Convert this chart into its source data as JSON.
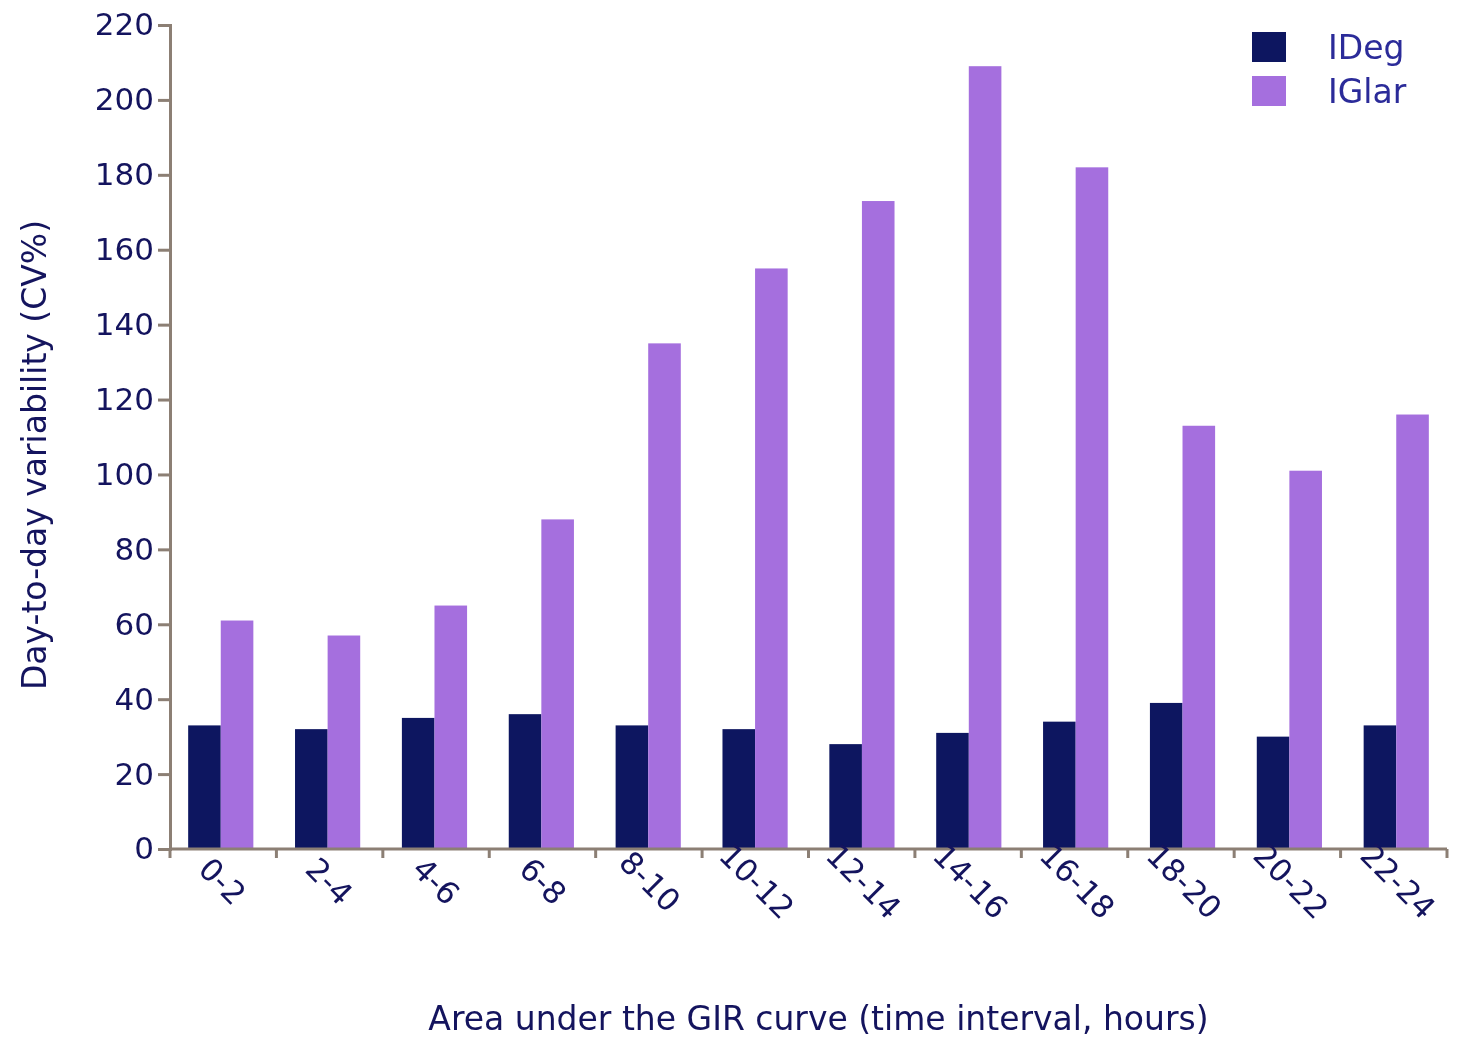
{
  "chart_data": {
    "type": "bar",
    "xlabel": "Area under the GIR curve (time interval, hours)",
    "ylabel": "Day-to-day variability (CV%)",
    "categories": [
      "0-2",
      "2-4",
      "4-6",
      "6-8",
      "8-10",
      "10-12",
      "12-14",
      "14-16",
      "16-18",
      "18-20",
      "20-22",
      "22-24"
    ],
    "series": [
      {
        "name": "IDeg",
        "color": "#0d1660",
        "values": [
          33,
          32,
          35,
          36,
          33,
          32,
          28,
          31,
          34,
          39,
          30,
          33
        ]
      },
      {
        "name": "IGlar",
        "color": "#a56fde",
        "values": [
          61,
          57,
          65,
          88,
          135,
          155,
          173,
          209,
          182,
          113,
          101,
          116
        ]
      }
    ],
    "ylim": [
      0,
      220
    ],
    "yticks": [
      0,
      20,
      40,
      60,
      80,
      100,
      120,
      140,
      160,
      180,
      200,
      220
    ],
    "grid": false,
    "legend": "top right"
  }
}
